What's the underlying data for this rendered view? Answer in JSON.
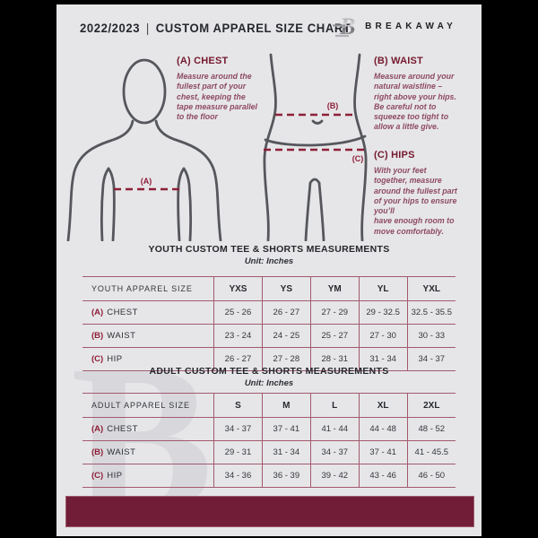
{
  "header": {
    "year": "2022/2023",
    "divider": "|",
    "title": "CUSTOM APPAREL SIZE CHART",
    "brand": "BREAKAWAY"
  },
  "logo_letter": "B",
  "watermark_letter": "B",
  "sections": {
    "chest": {
      "heading": "(A) CHEST",
      "body": "Measure around the\nfullest part of your\nchest, keeping the\ntape measure parallel\nto the floor"
    },
    "waist": {
      "heading": "(B) WAIST",
      "body": "Measure around your\nnatural waistline –\nright above your hips.\nBe careful not to\nsqueeze too tight to\nallow a little give."
    },
    "hips": {
      "heading": "(C) HIPS",
      "body": "With your feet\ntogether, measure\naround the fullest part\nof your hips to ensure\nyou’ll\nhave enough room to\nmove comfortably."
    }
  },
  "figure_labels": {
    "chest": "(A)",
    "waist": "(B)",
    "hips": "(C)"
  },
  "tables": [
    {
      "title": "YOUTH CUSTOM TEE & SHORTS MEASUREMENTS",
      "unit": "Unit: Inches",
      "columns": [
        "YOUTH APPAREL SIZE",
        "YXS",
        "YS",
        "YM",
        "YL",
        "YXL"
      ],
      "rows": [
        {
          "key": "(A)",
          "label": "CHEST",
          "values": [
            "25 - 26",
            "26 - 27",
            "27 - 29",
            "29 - 32.5",
            "32.5 - 35.5"
          ]
        },
        {
          "key": "(B)",
          "label": "WAIST",
          "values": [
            "23 - 24",
            "24 - 25",
            "25 - 27",
            "27 - 30",
            "30 - 33"
          ]
        },
        {
          "key": "(C)",
          "label": "HIP",
          "values": [
            "26 - 27",
            "27 - 28",
            "28 - 31",
            "31 - 34",
            "34 - 37"
          ]
        }
      ]
    },
    {
      "title": "ADULT CUSTOM TEE & SHORTS MEASUREMENTS",
      "unit": "Unit: Inches",
      "columns": [
        "ADULT APPAREL SIZE",
        "S",
        "M",
        "L",
        "XL",
        "2XL"
      ],
      "rows": [
        {
          "key": "(A)",
          "label": "CHEST",
          "values": [
            "34 - 37",
            "37 - 41",
            "41 - 44",
            "44 - 48",
            "48 - 52"
          ]
        },
        {
          "key": "(B)",
          "label": "WAIST",
          "values": [
            "29 - 31",
            "31 - 34",
            "34 - 37",
            "37 - 41",
            "41 - 45.5"
          ]
        },
        {
          "key": "(C)",
          "label": "HIP",
          "values": [
            "34 - 36",
            "36 - 39",
            "39 - 42",
            "43 - 46",
            "46 - 50"
          ]
        }
      ]
    }
  ],
  "colors": {
    "page_bg": "#e6e6e8",
    "frame": "#000000",
    "maroon_bar": "#721d38",
    "heading_maroon": "#75192f",
    "dash_line": "#8e1f38",
    "table_border": "#a25a6e",
    "text_dark": "#2c2f35",
    "description_text": "#8e4a61"
  }
}
